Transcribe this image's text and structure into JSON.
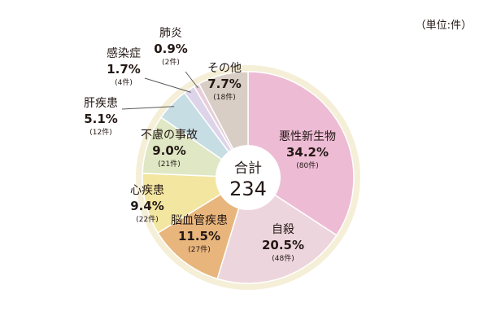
{
  "unit_note": "（単位:件）",
  "center": {
    "label": "合計",
    "total": "234"
  },
  "colors": {
    "ring": "#f5efd8",
    "leader": "#5a5a5a",
    "slice_border": "#ffffff"
  },
  "chart_data": {
    "type": "pie",
    "unit": "件",
    "total": 234,
    "slices": [
      {
        "name": "悪性新生物",
        "percent_label": "34.2%",
        "count_label": "(80件)",
        "value": 80,
        "percent": 34.2,
        "color": "#edbcd4"
      },
      {
        "name": "自殺",
        "percent_label": "20.5%",
        "count_label": "(48件)",
        "value": 48,
        "percent": 20.5,
        "color": "#edd5dd"
      },
      {
        "name": "脳血管疾患",
        "percent_label": "11.5%",
        "count_label": "(27件)",
        "value": 27,
        "percent": 11.5,
        "color": "#e8b57c"
      },
      {
        "name": "心疾患",
        "percent_label": "9.4%",
        "count_label": "(22件)",
        "value": 22,
        "percent": 9.4,
        "color": "#f3e6a0"
      },
      {
        "name": "不慮の事故",
        "percent_label": "9.0%",
        "count_label": "(21件)",
        "value": 21,
        "percent": 9.0,
        "color": "#dfe7c4"
      },
      {
        "name": "肝疾患",
        "percent_label": "5.1%",
        "count_label": "(12件)",
        "value": 12,
        "percent": 5.1,
        "color": "#c6dde3"
      },
      {
        "name": "感染症",
        "percent_label": "1.7%",
        "count_label": "(4件)",
        "value": 4,
        "percent": 1.7,
        "color": "#ddd4ea"
      },
      {
        "name": "肺炎",
        "percent_label": "0.9%",
        "count_label": "(2件)",
        "value": 2,
        "percent": 0.9,
        "color": "#e6cfd9"
      },
      {
        "name": "その他",
        "percent_label": "7.7%",
        "count_label": "(18件)",
        "value": 18,
        "percent": 7.7,
        "color": "#d8cec5"
      }
    ]
  }
}
